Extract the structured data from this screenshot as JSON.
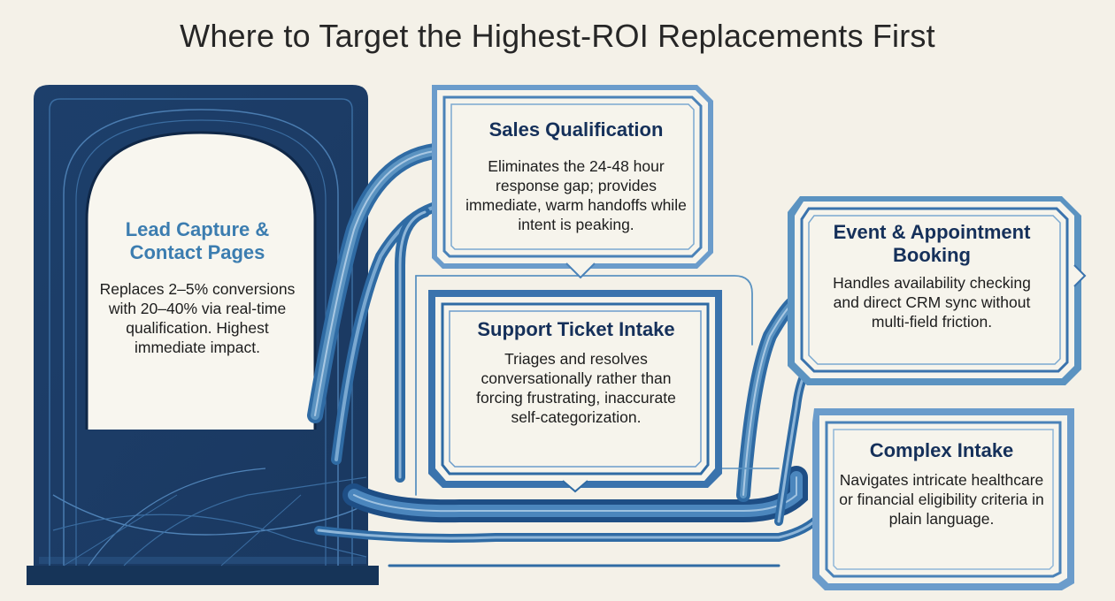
{
  "title": "Where to Target the Highest-ROI Replacements First",
  "colors": {
    "background": "#f4f1e8",
    "navy": "#1b3a63",
    "dark_navy": "#15305a",
    "accent_blue": "#3c7db0",
    "mid_blue": "#5b93c1",
    "light_blue": "#8fb6d8",
    "text": "#1d1d1d"
  },
  "cards": {
    "lead": {
      "title": "Lead Capture & Contact Pages",
      "body": "Replaces 2–5% conversions with 20–40% via real-time qualification. Highest immediate impact."
    },
    "sales": {
      "title": "Sales Qualification",
      "body": "Eliminates the 24-48 hour response gap; provides immediate, warm handoffs while intent is peaking."
    },
    "support": {
      "title": "Support Ticket Intake",
      "body": "Triages and resolves conversationally rather than forcing frustrating, inaccurate self-categorization."
    },
    "event": {
      "title": "Event & Appointment Booking",
      "body": "Handles availability checking and direct CRM sync without multi-field friction."
    },
    "complex": {
      "title": "Complex Intake",
      "body": "Navigates intricate healthcare or financial eligibility criteria in plain language."
    }
  }
}
